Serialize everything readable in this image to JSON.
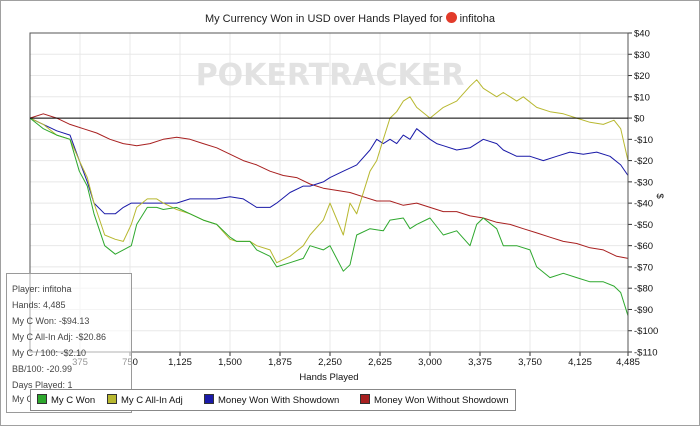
{
  "title": {
    "text": "My Currency Won in USD over Hands Played for",
    "player": "infitoha"
  },
  "watermark": "POKERTRACKER",
  "stats": {
    "player": "Player: infitoha",
    "hands": "Hands: 4,485",
    "won": "My C Won: -$94.13",
    "allin": "My C All-In Adj: -$20.86",
    "per100": "My C / 100: -$2.10",
    "bb100": "BB/100: -20.99",
    "days": "Days Played: 1",
    "perday": "My C / Day: -$94.13"
  },
  "legend": [
    {
      "name": "My C Won",
      "color": "#2ea82e"
    },
    {
      "name": "My C All-In Adj",
      "color": "#b8b830"
    },
    {
      "name": "Money Won With Showdown",
      "color": "#1a1aa8"
    },
    {
      "name": "Money Won Without Showdown",
      "color": "#a82020"
    }
  ],
  "chart_data": {
    "type": "line",
    "xlabel": "Hands Played",
    "ylabel": "$",
    "xlim": [
      0,
      4485
    ],
    "ylim": [
      -110,
      40
    ],
    "x_ticks": [
      375,
      750,
      1125,
      1500,
      1875,
      2250,
      2625,
      3000,
      3375,
      3750,
      4125,
      4485
    ],
    "x_tick_labels": [
      "375",
      "750",
      "1,125",
      "1,500",
      "1,875",
      "2,250",
      "2,625",
      "3,000",
      "3,375",
      "3,750",
      "4,125",
      "4,485"
    ],
    "y_ticks": [
      40,
      30,
      20,
      10,
      0,
      -10,
      -20,
      -30,
      -40,
      -50,
      -60,
      -70,
      -80,
      -90,
      -100,
      -110
    ],
    "y_tick_labels": [
      "$40",
      "$30",
      "$20",
      "$10",
      "$0",
      "-$10",
      "-$20",
      "-$30",
      "-$40",
      "-$50",
      "-$60",
      "-$70",
      "-$80",
      "-$90",
      "-$100",
      "-$110"
    ],
    "grid": true,
    "series": [
      {
        "name": "My C Won",
        "color": "#2ea82e",
        "x": [
          0,
          100,
          200,
          300,
          370,
          430,
          480,
          560,
          640,
          700,
          760,
          800,
          880,
          950,
          1000,
          1100,
          1200,
          1300,
          1400,
          1500,
          1550,
          1650,
          1700,
          1800,
          1850,
          1950,
          2050,
          2100,
          2200,
          2250,
          2350,
          2400,
          2450,
          2550,
          2650,
          2700,
          2800,
          2850,
          2900,
          3000,
          3100,
          3200,
          3300,
          3350,
          3400,
          3500,
          3550,
          3650,
          3750,
          3800,
          3900,
          4000,
          4100,
          4200,
          4300,
          4380,
          4430,
          4485
        ],
        "y": [
          0,
          -5,
          -8,
          -10,
          -25,
          -32,
          -45,
          -60,
          -64,
          -62,
          -60,
          -50,
          -42,
          -42,
          -43,
          -42,
          -45,
          -48,
          -50,
          -56,
          -58,
          -58,
          -62,
          -65,
          -70,
          -68,
          -66,
          -60,
          -62,
          -60,
          -72,
          -69,
          -55,
          -52,
          -53,
          -48,
          -47,
          -52,
          -50,
          -47,
          -55,
          -53,
          -60,
          -50,
          -47,
          -52,
          -60,
          -60,
          -62,
          -70,
          -75,
          -73,
          -75,
          -77,
          -77,
          -79,
          -82,
          -93
        ]
      },
      {
        "name": "My C All-In Adj",
        "color": "#b8b830",
        "x": [
          0,
          100,
          200,
          300,
          370,
          430,
          480,
          560,
          640,
          700,
          760,
          800,
          880,
          950,
          1000,
          1100,
          1200,
          1300,
          1400,
          1500,
          1550,
          1650,
          1700,
          1800,
          1850,
          1950,
          2050,
          2100,
          2200,
          2250,
          2350,
          2400,
          2450,
          2550,
          2600,
          2650,
          2700,
          2750,
          2800,
          2850,
          2900,
          3000,
          3100,
          3200,
          3300,
          3350,
          3400,
          3500,
          3550,
          3650,
          3700,
          3800,
          3900,
          4000,
          4100,
          4200,
          4300,
          4380,
          4430,
          4485
        ],
        "y": [
          0,
          -3,
          -8,
          -10,
          -20,
          -28,
          -40,
          -55,
          -57,
          -58,
          -50,
          -42,
          -38,
          -38,
          -40,
          -43,
          -45,
          -48,
          -50,
          -57,
          -58,
          -58,
          -60,
          -62,
          -68,
          -65,
          -60,
          -55,
          -48,
          -40,
          -55,
          -40,
          -45,
          -25,
          -20,
          -10,
          0,
          3,
          8,
          10,
          5,
          0,
          5,
          8,
          15,
          18,
          14,
          10,
          12,
          8,
          10,
          5,
          3,
          2,
          0,
          -2,
          -3,
          -1,
          -5,
          -20
        ]
      },
      {
        "name": "Money Won With Showdown",
        "color": "#1a1aa8",
        "x": [
          0,
          100,
          200,
          300,
          370,
          430,
          480,
          560,
          640,
          700,
          760,
          800,
          880,
          1000,
          1100,
          1200,
          1300,
          1400,
          1500,
          1600,
          1700,
          1800,
          1850,
          1950,
          2050,
          2100,
          2200,
          2250,
          2350,
          2450,
          2550,
          2600,
          2650,
          2700,
          2750,
          2800,
          2850,
          2900,
          3000,
          3050,
          3100,
          3200,
          3300,
          3400,
          3500,
          3550,
          3650,
          3750,
          3850,
          3950,
          4050,
          4150,
          4250,
          4350,
          4430,
          4485
        ],
        "y": [
          0,
          -3,
          -6,
          -8,
          -20,
          -30,
          -40,
          -45,
          -45,
          -42,
          -40,
          -40,
          -40,
          -40,
          -40,
          -38,
          -38,
          -38,
          -37,
          -38,
          -42,
          -42,
          -40,
          -35,
          -32,
          -32,
          -30,
          -28,
          -25,
          -22,
          -15,
          -10,
          -12,
          -10,
          -12,
          -8,
          -10,
          -5,
          -10,
          -12,
          -13,
          -15,
          -14,
          -10,
          -12,
          -15,
          -18,
          -18,
          -20,
          -18,
          -16,
          -17,
          -16,
          -18,
          -22,
          -27
        ]
      },
      {
        "name": "Money Won Without Showdown",
        "color": "#a82020",
        "x": [
          0,
          100,
          200,
          300,
          400,
          500,
          600,
          700,
          800,
          900,
          1000,
          1100,
          1200,
          1300,
          1400,
          1500,
          1600,
          1700,
          1800,
          1900,
          2000,
          2100,
          2200,
          2300,
          2400,
          2500,
          2600,
          2700,
          2800,
          2900,
          3000,
          3100,
          3200,
          3300,
          3400,
          3500,
          3600,
          3700,
          3800,
          3900,
          4000,
          4100,
          4200,
          4300,
          4400,
          4485
        ],
        "y": [
          0,
          2,
          0,
          -3,
          -5,
          -7,
          -10,
          -12,
          -13,
          -12,
          -10,
          -9,
          -10,
          -12,
          -14,
          -17,
          -20,
          -22,
          -25,
          -27,
          -28,
          -31,
          -33,
          -34,
          -35,
          -37,
          -39,
          -39,
          -41,
          -40,
          -42,
          -44,
          -44,
          -46,
          -47,
          -49,
          -50,
          -52,
          -54,
          -56,
          -58,
          -59,
          -61,
          -62,
          -65,
          -66
        ]
      }
    ]
  }
}
